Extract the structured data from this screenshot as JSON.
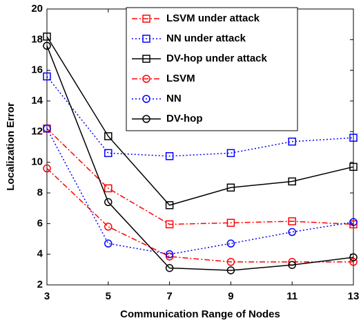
{
  "chart_data": {
    "type": "line",
    "x_label": "Communication Range of Nodes",
    "y_label": "Localization Error",
    "x": [
      3,
      5,
      7,
      9,
      11,
      13
    ],
    "xlim": [
      3,
      13
    ],
    "xticks": [
      3,
      5,
      7,
      9,
      11,
      13
    ],
    "ylim": [
      2,
      20
    ],
    "yticks": [
      2,
      4,
      6,
      8,
      10,
      12,
      14,
      16,
      18,
      20
    ],
    "grid": false,
    "legend": "top",
    "series": [
      {
        "name": "LSVM under attack",
        "color": "#ff0000",
        "linestyle": "dashdot",
        "marker": "square",
        "values": [
          12.2,
          8.3,
          5.95,
          6.05,
          6.15,
          5.95
        ]
      },
      {
        "name": "NN under attack",
        "color": "#0000ff",
        "linestyle": "dotted",
        "marker": "square",
        "values": [
          15.6,
          10.6,
          10.4,
          10.6,
          11.35,
          11.6
        ]
      },
      {
        "name": "DV-hop under attack",
        "color": "#000000",
        "linestyle": "solid",
        "marker": "square",
        "values": [
          18.2,
          11.7,
          7.2,
          8.35,
          8.75,
          9.7
        ]
      },
      {
        "name": "LSVM",
        "color": "#ff0000",
        "linestyle": "dashdot",
        "marker": "circle",
        "values": [
          9.6,
          5.8,
          3.85,
          3.5,
          3.5,
          3.5
        ]
      },
      {
        "name": "NN",
        "color": "#0000ff",
        "linestyle": "dotted",
        "marker": "circle",
        "values": [
          12.2,
          4.7,
          4.0,
          4.7,
          5.45,
          6.1
        ]
      },
      {
        "name": "DV-hop",
        "color": "#000000",
        "linestyle": "solid",
        "marker": "circle",
        "values": [
          17.6,
          7.4,
          3.1,
          2.95,
          3.3,
          3.8
        ]
      }
    ]
  }
}
